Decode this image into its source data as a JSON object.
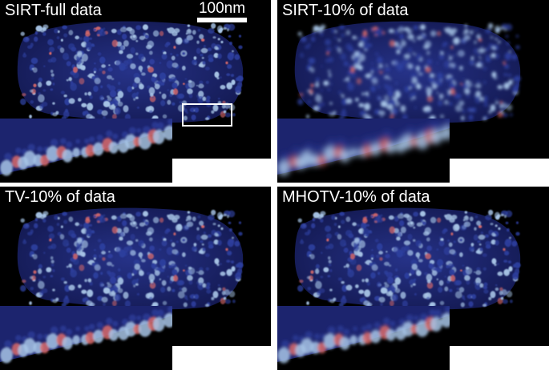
{
  "panels": [
    {
      "label": "SIRT-full data",
      "smooth": 0.6
    },
    {
      "label": "SIRT-10% of data",
      "smooth": 1.8
    },
    {
      "label": "TV-10% of data",
      "smooth": 0.7
    },
    {
      "label": "MHOTV-10% of data",
      "smooth": 0.9
    }
  ],
  "scale_bar": {
    "label": "100nm"
  },
  "colors": {
    "background": "#000000",
    "particle_blue": "#2d3f9e",
    "particle_light": "#a7c4e6",
    "particle_red": "#d96a6a",
    "rod": "#1c246e"
  }
}
